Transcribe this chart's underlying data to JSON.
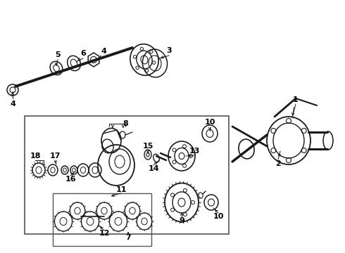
{
  "bg": "#ffffff",
  "fig_w": 4.9,
  "fig_h": 3.6,
  "dpi": 100
}
